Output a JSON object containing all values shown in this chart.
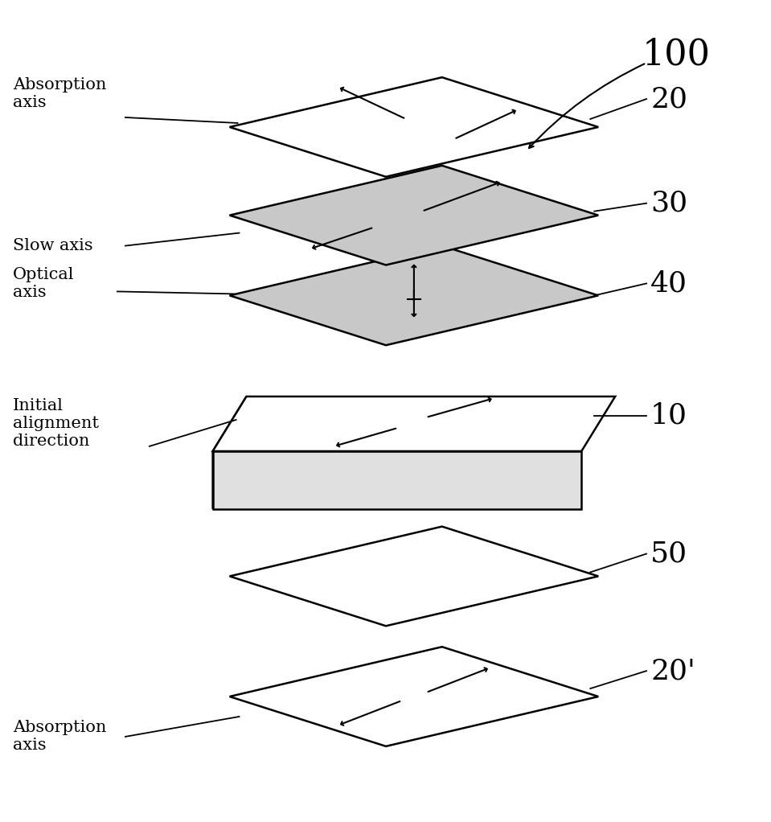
{
  "bg_color": "#ffffff",
  "line_color": "#000000",
  "gray_fill": "#c8c8c8",
  "white_fill": "#ffffff",
  "side_fill_left": "#e8e8e8",
  "side_fill_front": "#d8d8d8",
  "label_100": "100",
  "label_20": "20",
  "label_30": "30",
  "label_40": "40",
  "label_10": "10",
  "label_50": "50",
  "label_20prime": "20'",
  "text_absorption_axis_top": "Absorption\naxis",
  "text_slow_axis": "Slow axis",
  "text_optical_axis": "Optical\naxis",
  "text_initial_alignment": "Initial\nalignment\ndirection",
  "text_absorption_axis_bot": "Absorption\naxis",
  "fs_num": 26,
  "fs_label": 15,
  "fs_100": 32
}
